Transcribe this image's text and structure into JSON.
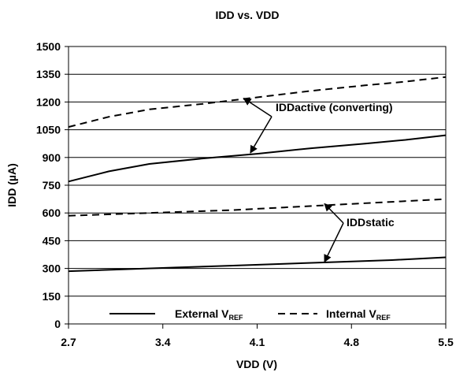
{
  "chart_data": {
    "type": "line",
    "title": "IDD vs. VDD",
    "xlabel": "VDD (V)",
    "ylabel": "IDD (µA)",
    "xlim": [
      2.7,
      5.5
    ],
    "ylim": [
      0,
      1500
    ],
    "x_ticks": [
      "2.7",
      "3.4",
      "4.1",
      "4.8",
      "5.5"
    ],
    "y_ticks": [
      "0",
      "150",
      "300",
      "450",
      "600",
      "750",
      "900",
      "1050",
      "1200",
      "1350",
      "1500"
    ],
    "grid": "horizontal",
    "legend_position": "bottom",
    "legend": [
      {
        "label_main": "External V",
        "label_sub": "REF",
        "style": "solid"
      },
      {
        "label_main": "Internal V",
        "label_sub": "REF",
        "style": "dashed"
      }
    ],
    "series": [
      {
        "group": "active",
        "reference": "internal",
        "style": "dashed",
        "x": [
          2.7,
          3.0,
          3.3,
          3.7,
          4.1,
          4.5,
          4.9,
          5.2,
          5.5
        ],
        "values": [
          1065,
          1120,
          1160,
          1190,
          1225,
          1260,
          1290,
          1310,
          1335
        ]
      },
      {
        "group": "active",
        "reference": "external",
        "style": "solid",
        "x": [
          2.7,
          3.0,
          3.3,
          3.7,
          4.1,
          4.5,
          4.9,
          5.2,
          5.5
        ],
        "values": [
          770,
          825,
          865,
          895,
          920,
          950,
          975,
          995,
          1020
        ]
      },
      {
        "group": "static",
        "reference": "internal",
        "style": "dashed",
        "x": [
          2.7,
          3.1,
          3.5,
          3.9,
          4.3,
          4.7,
          5.1,
          5.5
        ],
        "values": [
          585,
          595,
          605,
          615,
          630,
          645,
          660,
          675
        ]
      },
      {
        "group": "static",
        "reference": "external",
        "style": "solid",
        "x": [
          2.7,
          3.1,
          3.5,
          3.9,
          4.3,
          4.7,
          5.1,
          5.5
        ],
        "values": [
          285,
          295,
          305,
          315,
          325,
          335,
          345,
          360
        ]
      }
    ],
    "annotations": [
      {
        "text": "IDDactive (converting)",
        "targets": [
          {
            "x": 4.0,
            "y": 1220
          },
          {
            "x": 4.05,
            "y": 925
          }
        ]
      },
      {
        "text": "IDDstatic",
        "targets": [
          {
            "x": 4.6,
            "y": 650
          },
          {
            "x": 4.6,
            "y": 335
          }
        ]
      }
    ]
  }
}
